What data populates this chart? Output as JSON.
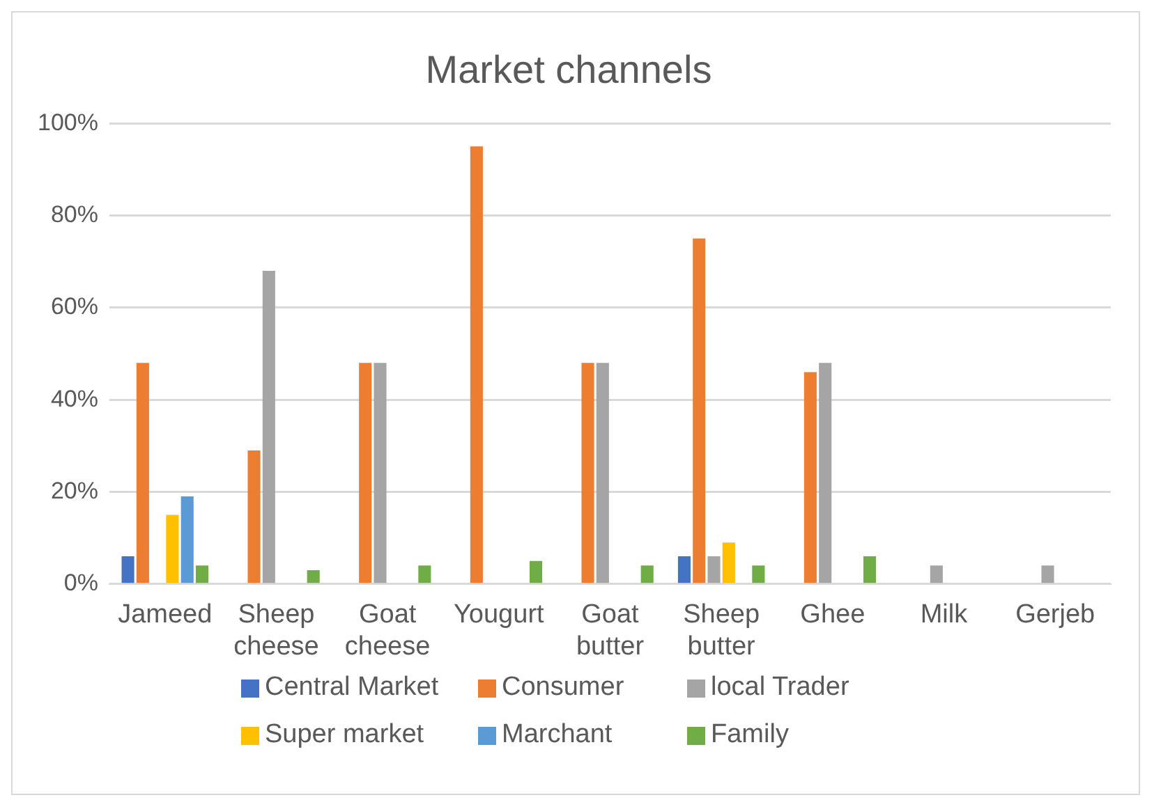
{
  "chart_data": {
    "type": "bar",
    "title": "Market channels",
    "categories": [
      "Jameed",
      "Sheep cheese",
      "Goat cheese",
      "Yougurt",
      "Goat butter",
      "Sheep butter",
      "Ghee",
      "Milk",
      "Gerjeb"
    ],
    "series": [
      {
        "name": "Central Market",
        "color": "#4472c4",
        "values": [
          6,
          null,
          null,
          null,
          null,
          6,
          null,
          null,
          null
        ]
      },
      {
        "name": "Consumer",
        "color": "#ed7d31",
        "values": [
          48,
          29,
          48,
          95,
          48,
          75,
          46,
          null,
          null
        ]
      },
      {
        "name": "local Trader",
        "color": "#a5a5a5",
        "values": [
          null,
          68,
          48,
          null,
          48,
          6,
          48,
          4,
          4
        ]
      },
      {
        "name": "Super market",
        "color": "#ffc000",
        "values": [
          15,
          null,
          null,
          null,
          null,
          9,
          null,
          null,
          null
        ]
      },
      {
        "name": "Marchant",
        "color": "#5b9bd5",
        "values": [
          19,
          null,
          null,
          null,
          null,
          null,
          null,
          null,
          null
        ]
      },
      {
        "name": "Family",
        "color": "#70ad47",
        "values": [
          4,
          3,
          4,
          5,
          4,
          4,
          6,
          null,
          null
        ]
      }
    ],
    "ylim": [
      0,
      100
    ],
    "yticks": [
      {
        "value": 0,
        "label": "0%"
      },
      {
        "value": 20,
        "label": "20%"
      },
      {
        "value": 40,
        "label": "40%"
      },
      {
        "value": 60,
        "label": "60%"
      },
      {
        "value": 80,
        "label": "80%"
      },
      {
        "value": 100,
        "label": "100%"
      }
    ],
    "grid": "y",
    "legend": "bottom"
  }
}
